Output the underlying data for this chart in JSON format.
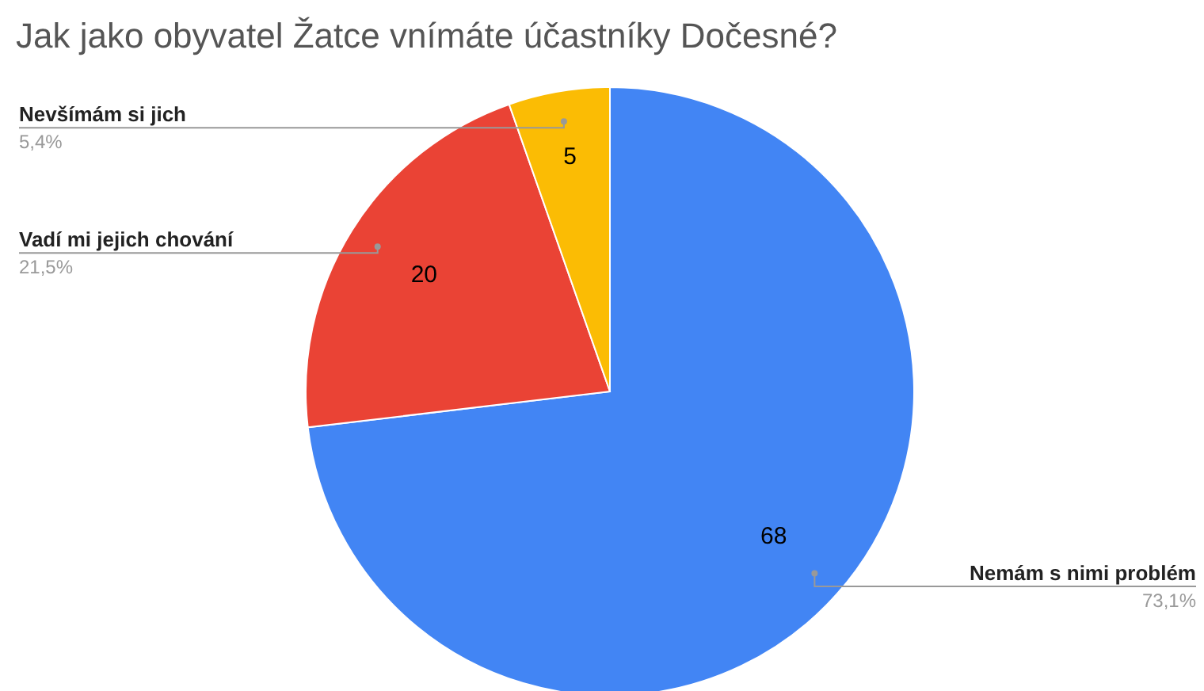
{
  "chart_data": {
    "type": "pie",
    "title": "Jak jako obyvatel Žatce vnímáte účastníky Dočesné?",
    "categories": [
      "Nemám s nimi problém",
      "Vadí mi jejich chování",
      "Nevšímám si jich"
    ],
    "values": [
      68,
      20,
      5
    ],
    "colors": [
      "#4285f4",
      "#ea4335",
      "#fbbc04"
    ],
    "data_labels": true,
    "annotations": [
      "73,1%",
      "21,5%",
      "5,4%"
    ]
  }
}
